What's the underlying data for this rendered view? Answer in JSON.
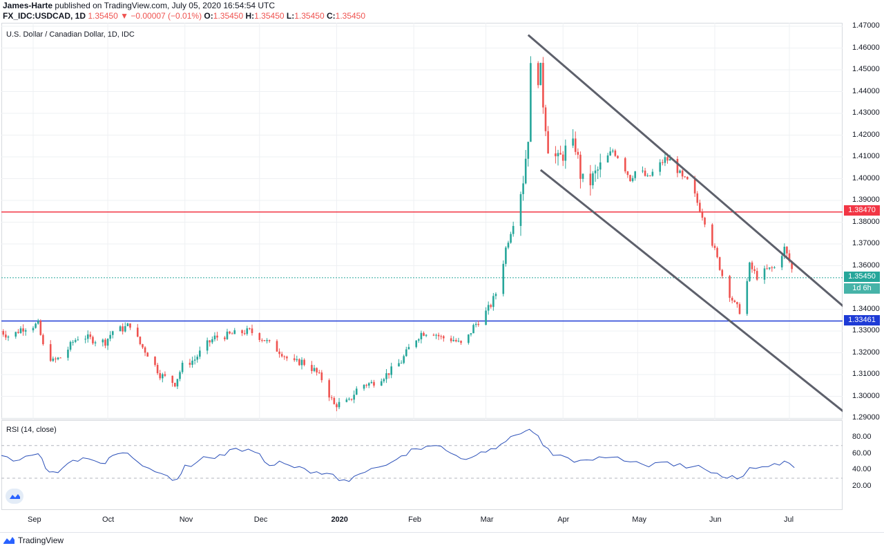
{
  "header": {
    "author": "James-Harte",
    "published": "published on TradingView.com, July 05, 2020 16:54:54 UTC",
    "symbol": "FX_IDC:USDCAD, 1D",
    "last": "1.35450",
    "change": "−0.00007 (−0.01%)",
    "o_label": "O:",
    "o": "1.35450",
    "h_label": "H:",
    "h": "1.35450",
    "l_label": "L:",
    "l": "1.35450",
    "c_label": "C:",
    "c": "1.35450"
  },
  "chart_title": "U.S. Dollar / Canadian Dollar, 1D, IDC",
  "rsi_title": "RSI (14, close)",
  "footer": {
    "brand": "TradingView"
  },
  "colors": {
    "up": "#26a69a",
    "down": "#ef5350",
    "red_line": "#f23645",
    "blue_line": "#1e3bd6",
    "channel": "#5d606b",
    "rsi": "#2a4fb8"
  },
  "chart_data": [
    {
      "type": "candlestick",
      "title": "U.S. Dollar / Canadian Dollar, 1D, IDC",
      "ylim": [
        1.29,
        1.47
      ],
      "yticks": [
        "1.47000",
        "1.46000",
        "1.45000",
        "1.44000",
        "1.43000",
        "1.42000",
        "1.41000",
        "1.40000",
        "1.39000",
        "1.38000",
        "1.37000",
        "1.36000",
        "1.34000",
        "1.33000",
        "1.32000",
        "1.31000",
        "1.30000",
        "1.29000"
      ],
      "xticks": [
        "Sep",
        "Oct",
        "Nov",
        "Dec",
        "2020",
        "Feb",
        "Mar",
        "Apr",
        "May",
        "Jun",
        "Jul"
      ],
      "horizontal_lines": [
        {
          "value": 1.3847,
          "label": "1.38470",
          "color": "red"
        },
        {
          "value": 1.33461,
          "label": "1.33461",
          "color": "blue"
        }
      ],
      "last_price": {
        "value": 1.3545,
        "label": "1.35450",
        "countdown": "1d 6h"
      },
      "close_path": [
        [
          "Aug 19",
          1.33
        ],
        [
          "Aug 23",
          1.327
        ],
        [
          "Aug 27",
          1.331
        ],
        [
          "Aug 30",
          1.332
        ],
        [
          "Sep 3",
          1.333
        ],
        [
          "Sep 5",
          1.323
        ],
        [
          "Sep 9",
          1.316
        ],
        [
          "Sep 13",
          1.3185
        ],
        [
          "Sep 17",
          1.325
        ],
        [
          "Sep 20",
          1.328
        ],
        [
          "Sep 25",
          1.326
        ],
        [
          "Sep 30",
          1.325
        ],
        [
          "Oct 3",
          1.33
        ],
        [
          "Oct 7",
          1.331
        ],
        [
          "Oct 10",
          1.333
        ],
        [
          "Oct 14",
          1.324
        ],
        [
          "Oct 18",
          1.318
        ],
        [
          "Oct 22",
          1.31
        ],
        [
          "Oct 28",
          1.306
        ],
        [
          "Oct 31",
          1.314
        ],
        [
          "Nov 5",
          1.317
        ],
        [
          "Nov 9",
          1.323
        ],
        [
          "Nov 13",
          1.327
        ],
        [
          "Nov 18",
          1.328
        ],
        [
          "Nov 22",
          1.329
        ],
        [
          "Nov 27",
          1.33
        ],
        [
          "Nov 30",
          1.328
        ],
        [
          "Dec 3",
          1.326
        ],
        [
          "Dec 6",
          1.323
        ],
        [
          "Dec 10",
          1.32
        ],
        [
          "Dec 14",
          1.315
        ],
        [
          "Dec 18",
          1.316
        ],
        [
          "Dec 23",
          1.312
        ],
        [
          "Dec 26",
          1.308
        ],
        [
          "Dec 31",
          1.296
        ],
        [
          "Jan 6",
          1.2975
        ],
        [
          "Jan 10",
          1.305
        ],
        [
          "Jan 15",
          1.306
        ],
        [
          "Jan 21",
          1.31
        ],
        [
          "Jan 27",
          1.316
        ],
        [
          "Jan 31",
          1.324
        ],
        [
          "Feb 4",
          1.329
        ],
        [
          "Feb 8",
          1.33
        ],
        [
          "Feb 12",
          1.327
        ],
        [
          "Feb 17",
          1.326
        ],
        [
          "Feb 21",
          1.323
        ],
        [
          "Feb 25",
          1.332
        ],
        [
          "Feb 29",
          1.337
        ],
        [
          "Mar 3",
          1.342
        ],
        [
          "Mar 6",
          1.35
        ],
        [
          "Mar 9",
          1.368
        ],
        [
          "Mar 12",
          1.38
        ],
        [
          "Mar 14",
          1.39
        ],
        [
          "Mar 16",
          1.4
        ],
        [
          "Mar 18",
          1.42
        ],
        [
          "Mar 19",
          1.45
        ],
        [
          "Mar 20",
          1.443
        ],
        [
          "Mar 23",
          1.449
        ],
        [
          "Mar 24",
          1.435
        ],
        [
          "Mar 26",
          1.415
        ],
        [
          "Mar 30",
          1.408
        ],
        [
          "Apr 2",
          1.413
        ],
        [
          "Apr 6",
          1.415
        ],
        [
          "Apr 8",
          1.402
        ],
        [
          "Apr 10",
          1.395
        ],
        [
          "Apr 14",
          1.402
        ],
        [
          "Apr 17",
          1.407
        ],
        [
          "Apr 21",
          1.413
        ],
        [
          "Apr 24",
          1.409
        ],
        [
          "Apr 28",
          1.4
        ],
        [
          "May 1",
          1.405
        ],
        [
          "May 5",
          1.4
        ],
        [
          "May 8",
          1.404
        ],
        [
          "May 12",
          1.409
        ],
        [
          "May 15",
          1.408
        ],
        [
          "May 19",
          1.4
        ],
        [
          "May 22",
          1.398
        ],
        [
          "May 26",
          1.386
        ],
        [
          "May 29",
          1.378
        ],
        [
          "Jun 2",
          1.363
        ],
        [
          "Jun 5",
          1.352
        ],
        [
          "Jun 9",
          1.342
        ],
        [
          "Jun 12",
          1.338
        ],
        [
          "Jun 15",
          1.36
        ],
        [
          "Jun 18",
          1.355
        ],
        [
          "Jun 22",
          1.358
        ],
        [
          "Jun 25",
          1.359
        ],
        [
          "Jun 29",
          1.368
        ],
        [
          "Jul 1",
          1.362
        ],
        [
          "Jul 3",
          1.3545
        ]
      ],
      "channel_lines": [
        {
          "name": "upper",
          "points": [
            [
              "Mar 18",
              1.466
            ],
            [
              "Jul 23",
              1.341
            ]
          ]
        },
        {
          "name": "lower",
          "points": [
            [
              "Mar 23",
              1.404
            ],
            [
              "Jul 26",
              1.29
            ]
          ]
        }
      ]
    },
    {
      "type": "line",
      "title": "RSI (14, close)",
      "ylim": [
        20,
        90
      ],
      "yticks": [
        "80.00",
        "60.00",
        "40.00",
        "20.00"
      ],
      "reference_levels": [
        70,
        30
      ],
      "rsi_path": [
        [
          "Aug 19",
          58
        ],
        [
          "Aug 24",
          51
        ],
        [
          "Aug 29",
          57
        ],
        [
          "Sep 3",
          60
        ],
        [
          "Sep 6",
          42
        ],
        [
          "Sep 9",
          38
        ],
        [
          "Sep 13",
          43
        ],
        [
          "Sep 17",
          52
        ],
        [
          "Sep 21",
          55
        ],
        [
          "Sep 26",
          51
        ],
        [
          "Sep 30",
          48
        ],
        [
          "Oct 3",
          58
        ],
        [
          "Oct 7",
          61
        ],
        [
          "Oct 11",
          55
        ],
        [
          "Oct 15",
          45
        ],
        [
          "Oct 20",
          38
        ],
        [
          "Oct 25",
          33
        ],
        [
          "Oct 29",
          29
        ],
        [
          "Nov 1",
          46
        ],
        [
          "Nov 6",
          50
        ],
        [
          "Nov 11",
          55
        ],
        [
          "Nov 15",
          59
        ],
        [
          "Nov 19",
          65
        ],
        [
          "Nov 24",
          63
        ],
        [
          "Nov 29",
          62
        ],
        [
          "Dec 3",
          50
        ],
        [
          "Dec 7",
          46
        ],
        [
          "Dec 11",
          48
        ],
        [
          "Dec 15",
          43
        ],
        [
          "Dec 19",
          42
        ],
        [
          "Dec 24",
          38
        ],
        [
          "Dec 28",
          36
        ],
        [
          "Jan 2",
          27
        ],
        [
          "Jan 6",
          26
        ],
        [
          "Jan 10",
          35
        ],
        [
          "Jan 15",
          42
        ],
        [
          "Jan 21",
          46
        ],
        [
          "Jan 25",
          53
        ],
        [
          "Jan 29",
          58
        ],
        [
          "Feb 2",
          66
        ],
        [
          "Feb 6",
          69
        ],
        [
          "Feb 10",
          70
        ],
        [
          "Feb 14",
          64
        ],
        [
          "Feb 18",
          58
        ],
        [
          "Feb 22",
          53
        ],
        [
          "Feb 26",
          58
        ],
        [
          "Mar 1",
          62
        ],
        [
          "Mar 5",
          66
        ],
        [
          "Mar 9",
          75
        ],
        [
          "Mar 13",
          83
        ],
        [
          "Mar 17",
          88
        ],
        [
          "Mar 20",
          86
        ],
        [
          "Mar 24",
          70
        ],
        [
          "Mar 28",
          58
        ],
        [
          "Apr 3",
          55
        ],
        [
          "Apr 8",
          52
        ],
        [
          "Apr 13",
          52
        ],
        [
          "Apr 18",
          55
        ],
        [
          "Apr 23",
          56
        ],
        [
          "Apr 28",
          50
        ],
        [
          "May 3",
          47
        ],
        [
          "May 8",
          49
        ],
        [
          "May 13",
          50
        ],
        [
          "May 18",
          48
        ],
        [
          "May 23",
          44
        ],
        [
          "May 28",
          41
        ],
        [
          "Jun 2",
          36
        ],
        [
          "Jun 6",
          30
        ],
        [
          "Jun 10",
          29
        ],
        [
          "Jun 15",
          43
        ],
        [
          "Jun 20",
          44
        ],
        [
          "Jun 25",
          48
        ],
        [
          "Jun 29",
          51
        ],
        [
          "Jul 3",
          43
        ]
      ]
    }
  ]
}
